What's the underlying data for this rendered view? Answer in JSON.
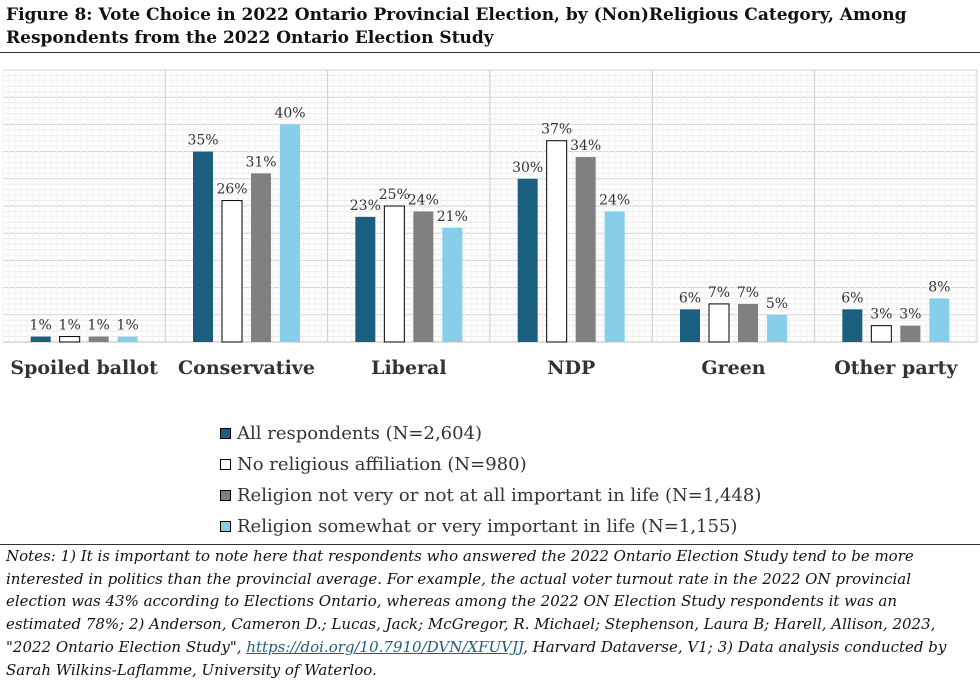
{
  "title": "Figure 8: Vote Choice in 2022 Ontario Provincial Election, by (Non)Religious Category, Among Respondents from the 2022 Ontario Election Study",
  "chart_data": {
    "type": "bar",
    "categories": [
      "Spoiled ballot",
      "Conservative",
      "Liberal",
      "NDP",
      "Green",
      "Other party"
    ],
    "series": [
      {
        "name": "All respondents (N=2,604)",
        "color": "#1a5e80",
        "values": [
          1,
          35,
          23,
          30,
          6,
          6
        ]
      },
      {
        "name": "No religious affiliation (N=980)",
        "color": "#ffffff",
        "values": [
          1,
          26,
          25,
          37,
          7,
          3
        ]
      },
      {
        "name": "Religion not very or not at all important in life (N=1,448)",
        "color": "#808080",
        "values": [
          1,
          31,
          24,
          34,
          7,
          3
        ]
      },
      {
        "name": "Religion somewhat or very important in life (N=1,155)",
        "color": "#87ceeb",
        "values": [
          1,
          40,
          21,
          24,
          5,
          8
        ]
      }
    ],
    "data_labels": [
      [
        "1%",
        "35%",
        "23%",
        "30%",
        "6%",
        "6%"
      ],
      [
        "1%",
        "26%",
        "25%",
        "37%",
        "7%",
        "3%"
      ],
      [
        "1%",
        "31%",
        "24%",
        "34%",
        "7%",
        "3%"
      ],
      [
        "1%",
        "40%",
        "21%",
        "24%",
        "5%",
        "8%"
      ]
    ],
    "ylim": [
      0,
      50
    ],
    "grid": true,
    "legend_position": "bottom",
    "xlabel": "",
    "ylabel": ""
  },
  "notes": {
    "before_link": "Notes: 1) It is important to note here that respondents who answered the 2022 Ontario Election Study tend to be more interested in politics than the provincial average. For example, the actual voter turnout rate in the 2022 ON provincial election was 43% according to Elections Ontario, whereas among the 2022 ON Election Study respondents it was an estimated 78%; 2) Anderson, Cameron D.; Lucas, Jack; McGregor, R. Michael; Stephenson, Laura B; Harell, Allison, 2023, \"2022 Ontario Election Study\", ",
    "link_text": "https://doi.org/10.7910/DVN/XFUVJJ",
    "after_link": ", Harvard Dataverse, V1; 3) Data analysis conducted by Sarah Wilkins-Laflamme, University of Waterloo."
  }
}
